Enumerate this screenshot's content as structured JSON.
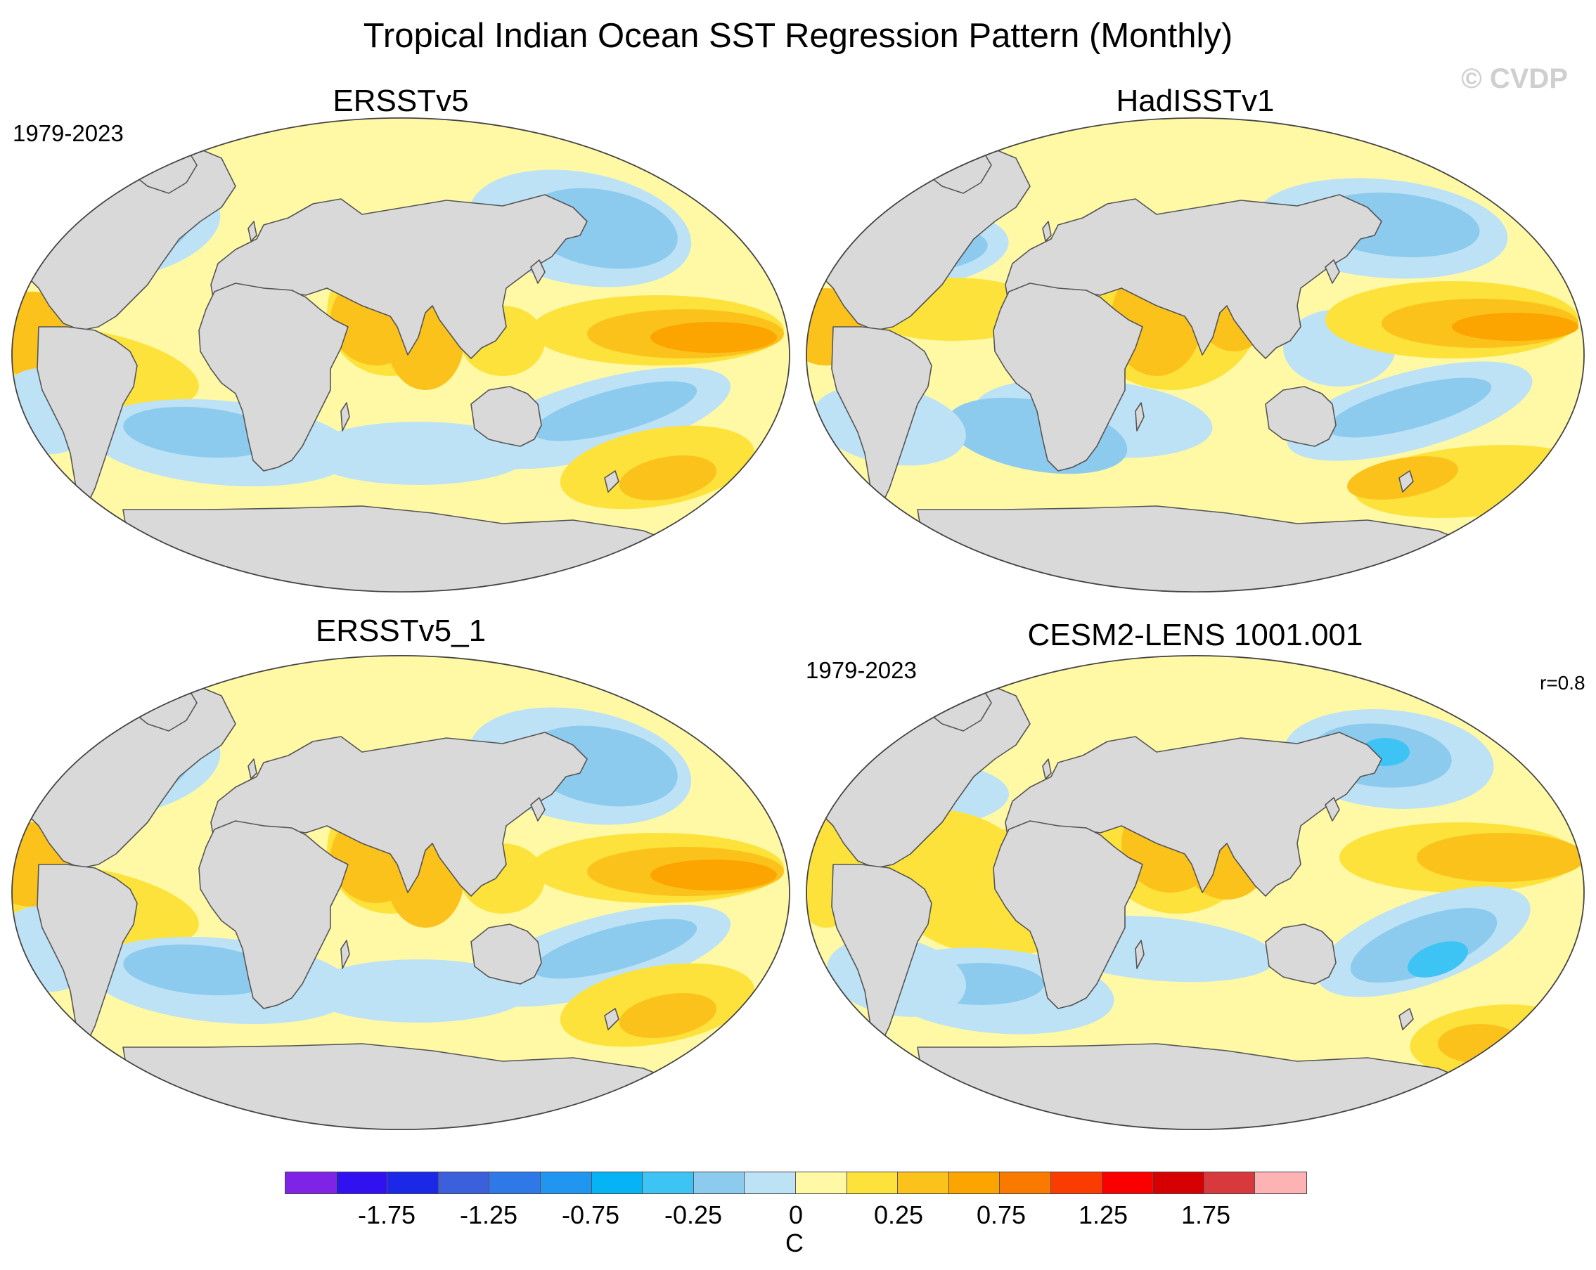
{
  "title": "Tropical Indian Ocean SST Regression Pattern (Monthly)",
  "watermark": "© CVDP",
  "panels": [
    {
      "id": "ersst",
      "title": "ERSSTv5",
      "period": "1979-2023",
      "stat": ""
    },
    {
      "id": "hadisst",
      "title": "HadISSTv1",
      "period": "",
      "stat": ""
    },
    {
      "id": "ersst1",
      "title": "ERSSTv5_1",
      "period": "",
      "stat": ""
    },
    {
      "id": "cesm2",
      "title": "CESM2-LENS 1001.001",
      "period": "1979-2023",
      "stat": "r=0.8"
    }
  ],
  "colorbar": {
    "unit": "C",
    "colors": [
      "#7f24e6",
      "#3211f0",
      "#1b28e8",
      "#3c5fdc",
      "#2f78e8",
      "#2196f0",
      "#06b3f5",
      "#3ec4f4",
      "#8dcbee",
      "#bde2f5",
      "#fff9a6",
      "#fde23c",
      "#fcc21c",
      "#fca400",
      "#fa7a00",
      "#fb3c00",
      "#fb0000",
      "#d60003",
      "#d8393c",
      "#fdb2b3"
    ],
    "tick_labels": [
      "-1.75",
      "-1.25",
      "-0.75",
      "-0.25",
      "0",
      "0.25",
      "0.75",
      "1.25",
      "1.75"
    ]
  },
  "colors": {
    "land": "#d9d9d9",
    "coast": "#555555",
    "ocean_base": "#fff9a6"
  }
}
